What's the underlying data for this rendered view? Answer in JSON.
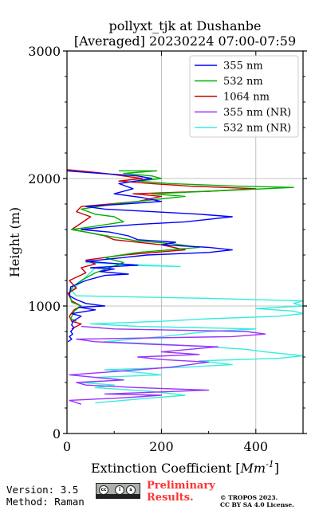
{
  "chart_data": {
    "type": "line",
    "title": [
      "pollyxt_tjk at Dushanbe",
      "[Averaged] 20230224 07:00-07:59"
    ],
    "xlabel_prefix": "Extinction Coefficient [",
    "xlabel_unit": "Mm",
    "xlabel_exp": "-1",
    "xlabel_suffix": "]",
    "ylabel": "Height (m)",
    "xlim": [
      0,
      500
    ],
    "ylim": [
      0,
      3000
    ],
    "xticks": [
      0,
      200,
      400
    ],
    "yticks": [
      0,
      1000,
      2000,
      3000
    ],
    "x_minor_ticks": [
      100,
      300,
      500
    ],
    "y_minor_ticks": [
      200,
      400,
      600,
      800,
      1200,
      1400,
      1600,
      1800,
      2200,
      2400,
      2600,
      2800
    ],
    "grid": true,
    "legend_position": "top-right",
    "series": [
      {
        "name": "355 nm",
        "color": "#0000ff",
        "points": [
          [
            2,
            720
          ],
          [
            10,
            740
          ],
          [
            5,
            760
          ],
          [
            12,
            780
          ],
          [
            8,
            800
          ],
          [
            15,
            830
          ],
          [
            10,
            850
          ],
          [
            12,
            880
          ],
          [
            30,
            920
          ],
          [
            10,
            940
          ],
          [
            60,
            970
          ],
          [
            25,
            990
          ],
          [
            80,
            1000
          ],
          [
            40,
            1020
          ],
          [
            20,
            1050
          ],
          [
            5,
            1080
          ],
          [
            8,
            1150
          ],
          [
            40,
            1200
          ],
          [
            80,
            1240
          ],
          [
            130,
            1250
          ],
          [
            70,
            1270
          ],
          [
            100,
            1290
          ],
          [
            50,
            1300
          ],
          [
            150,
            1320
          ],
          [
            40,
            1350
          ],
          [
            120,
            1380
          ],
          [
            170,
            1400
          ],
          [
            300,
            1420
          ],
          [
            350,
            1440
          ],
          [
            300,
            1460
          ],
          [
            200,
            1480
          ],
          [
            230,
            1500
          ],
          [
            150,
            1520
          ],
          [
            130,
            1550
          ],
          [
            90,
            1580
          ],
          [
            30,
            1600
          ],
          [
            80,
            1620
          ],
          [
            150,
            1640
          ],
          [
            250,
            1660
          ],
          [
            350,
            1700
          ],
          [
            280,
            1720
          ],
          [
            180,
            1740
          ],
          [
            80,
            1760
          ],
          [
            40,
            1780
          ],
          [
            120,
            1800
          ],
          [
            200,
            1820
          ],
          [
            160,
            1850
          ],
          [
            100,
            1880
          ],
          [
            140,
            1920
          ],
          [
            110,
            1960
          ],
          [
            180,
            2000
          ],
          [
            150,
            2020
          ],
          [
            70,
            2040
          ],
          [
            0,
            2060
          ]
        ]
      },
      {
        "name": "532 nm",
        "color": "#00b000",
        "points": [
          [
            20,
            880
          ],
          [
            8,
            900
          ],
          [
            15,
            960
          ],
          [
            30,
            1000
          ],
          [
            10,
            1030
          ],
          [
            5,
            1100
          ],
          [
            12,
            1150
          ],
          [
            30,
            1200
          ],
          [
            60,
            1260
          ],
          [
            90,
            1300
          ],
          [
            120,
            1340
          ],
          [
            80,
            1380
          ],
          [
            150,
            1420
          ],
          [
            280,
            1460
          ],
          [
            220,
            1490
          ],
          [
            150,
            1510
          ],
          [
            100,
            1540
          ],
          [
            70,
            1560
          ],
          [
            40,
            1580
          ],
          [
            10,
            1600
          ],
          [
            50,
            1620
          ],
          [
            120,
            1660
          ],
          [
            100,
            1700
          ],
          [
            60,
            1720
          ],
          [
            30,
            1760
          ],
          [
            100,
            1800
          ],
          [
            200,
            1840
          ],
          [
            250,
            1860
          ],
          [
            180,
            1880
          ],
          [
            300,
            1900
          ],
          [
            480,
            1930
          ],
          [
            360,
            1940
          ],
          [
            220,
            1960
          ],
          [
            150,
            1980
          ],
          [
            200,
            2000
          ],
          [
            180,
            2020
          ],
          [
            120,
            2040
          ],
          [
            190,
            2060
          ],
          [
            110,
            2060
          ]
        ]
      },
      {
        "name": "1064 nm",
        "color": "#cc0000",
        "points": [
          [
            10,
            820
          ],
          [
            30,
            860
          ],
          [
            10,
            880
          ],
          [
            5,
            920
          ],
          [
            15,
            970
          ],
          [
            30,
            1000
          ],
          [
            10,
            1040
          ],
          [
            2,
            1100
          ],
          [
            20,
            1140
          ],
          [
            5,
            1200
          ],
          [
            40,
            1260
          ],
          [
            30,
            1300
          ],
          [
            60,
            1330
          ],
          [
            40,
            1360
          ],
          [
            120,
            1400
          ],
          [
            250,
            1440
          ],
          [
            200,
            1480
          ],
          [
            100,
            1520
          ],
          [
            80,
            1550
          ],
          [
            40,
            1580
          ],
          [
            10,
            1600
          ],
          [
            30,
            1650
          ],
          [
            50,
            1700
          ],
          [
            20,
            1740
          ],
          [
            30,
            1780
          ],
          [
            150,
            1820
          ],
          [
            200,
            1860
          ],
          [
            140,
            1880
          ],
          [
            300,
            1900
          ],
          [
            400,
            1920
          ],
          [
            260,
            1940
          ],
          [
            180,
            1960
          ],
          [
            110,
            1980
          ],
          [
            160,
            2000
          ],
          [
            120,
            2020
          ],
          [
            80,
            2040
          ],
          [
            0,
            2070
          ]
        ]
      },
      {
        "name": "355 nm (NR)",
        "color": "#9933ff",
        "points": [
          [
            30,
            230
          ],
          [
            5,
            260
          ],
          [
            120,
            280
          ],
          [
            200,
            300
          ],
          [
            80,
            310
          ],
          [
            300,
            340
          ],
          [
            150,
            360
          ],
          [
            40,
            380
          ],
          [
            20,
            400
          ],
          [
            120,
            420
          ],
          [
            60,
            440
          ],
          [
            5,
            460
          ],
          [
            80,
            480
          ],
          [
            150,
            500
          ],
          [
            220,
            520
          ],
          [
            260,
            540
          ],
          [
            300,
            560
          ],
          [
            200,
            580
          ],
          [
            150,
            600
          ],
          [
            280,
            620
          ],
          [
            200,
            640
          ],
          [
            320,
            680
          ],
          [
            180,
            700
          ],
          [
            60,
            720
          ],
          [
            20,
            740
          ],
          [
            350,
            760
          ],
          [
            420,
            780
          ],
          [
            380,
            800
          ],
          [
            100,
            820
          ],
          [
            30,
            840
          ]
        ]
      },
      {
        "name": "532 nm (NR)",
        "color": "#33eedd",
        "points": [
          [
            60,
            240
          ],
          [
            150,
            270
          ],
          [
            250,
            300
          ],
          [
            180,
            330
          ],
          [
            60,
            360
          ],
          [
            100,
            380
          ],
          [
            30,
            400
          ],
          [
            120,
            420
          ],
          [
            60,
            440
          ],
          [
            200,
            460
          ],
          [
            150,
            480
          ],
          [
            80,
            500
          ],
          [
            250,
            520
          ],
          [
            350,
            540
          ],
          [
            280,
            570
          ],
          [
            450,
            590
          ],
          [
            500,
            610
          ],
          [
            420,
            640
          ],
          [
            380,
            660
          ],
          [
            300,
            680
          ],
          [
            200,
            700
          ],
          [
            80,
            720
          ],
          [
            200,
            760
          ],
          [
            300,
            800
          ],
          [
            400,
            820
          ],
          [
            150,
            840
          ],
          [
            50,
            860
          ],
          [
            200,
            880
          ],
          [
            300,
            900
          ],
          [
            450,
            920
          ],
          [
            500,
            940
          ],
          [
            480,
            960
          ],
          [
            400,
            980
          ],
          [
            500,
            1000
          ],
          [
            480,
            1020
          ],
          [
            500,
            1040
          ],
          [
            300,
            1060
          ],
          [
            20,
            1080
          ],
          [
            10,
            1120
          ],
          [
            60,
            1300
          ],
          [
            120,
            1320
          ],
          [
            240,
            1310
          ],
          [
            40,
            1340
          ]
        ]
      }
    ]
  },
  "footer": {
    "version": "Version: 3.5",
    "method": "Method: Raman",
    "prelim_line1": "Preliminary",
    "prelim_line2": "Results.",
    "copyright_line1": "© TROPOS 2023.",
    "copyright_line2": "CC BY SA 4.0 License.",
    "badge_text": [
      "cc",
      "i",
      "s"
    ]
  }
}
